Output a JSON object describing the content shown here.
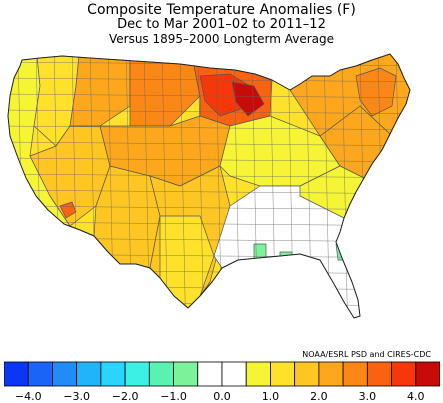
{
  "title": {
    "line1": "Composite Temperature Anomalies (F)",
    "line2": "Dec to Mar 2001–02 to 2011–12",
    "line3": "Versus 1895–2000 Longterm Average"
  },
  "credit": "NOAA/ESRL PSD and CIRES-CDC",
  "legend": {
    "bins": [
      {
        "color": "#0a36f5"
      },
      {
        "color": "#1a64f7"
      },
      {
        "color": "#1f8cf8"
      },
      {
        "color": "#22b4fa"
      },
      {
        "color": "#2ad4fb"
      },
      {
        "color": "#3cf0e6"
      },
      {
        "color": "#5af2b0"
      },
      {
        "color": "#7cf29a"
      },
      {
        "color": "#ffffff"
      },
      {
        "color": "#ffffff"
      },
      {
        "color": "#f5f536"
      },
      {
        "color": "#fde12a"
      },
      {
        "color": "#fdc622"
      },
      {
        "color": "#fda81c"
      },
      {
        "color": "#fb8716"
      },
      {
        "color": "#f86210"
      },
      {
        "color": "#f5370a"
      },
      {
        "color": "#c80a08"
      }
    ],
    "ticks": [
      "−4.0",
      "−3.0",
      "−2.0",
      "−1.0",
      "0.0",
      "1.0",
      "2.0",
      "3.0",
      "4.0"
    ]
  },
  "colors": {
    "yellow": "#f5f536",
    "light_orange": "#fde12a",
    "orange1": "#fdc622",
    "orange2": "#fda81c",
    "orange3": "#fb8716",
    "red1": "#f86210",
    "red2": "#f5370a",
    "darkred": "#c80a08",
    "green": "#7cf29a",
    "white": "#ffffff"
  }
}
